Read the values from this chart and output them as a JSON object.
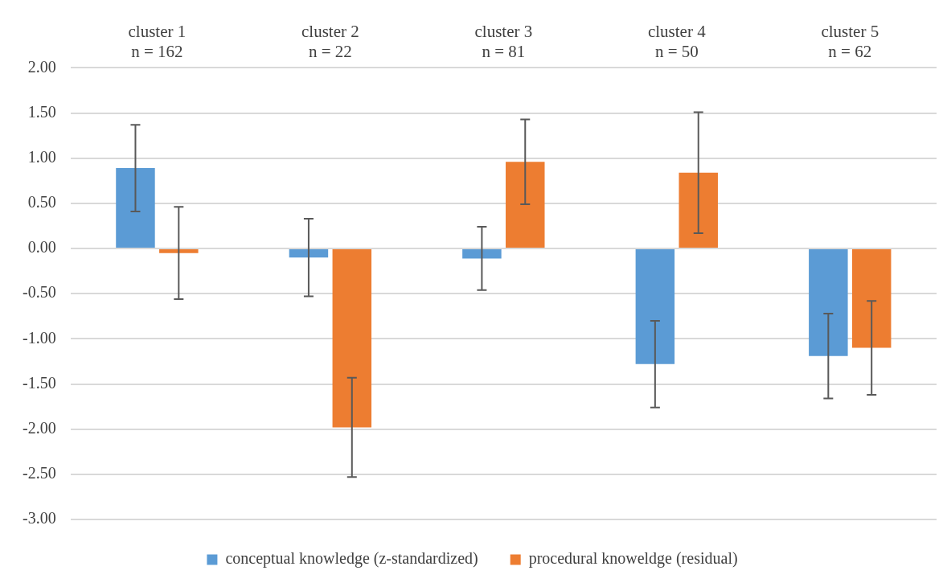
{
  "chart_data": {
    "type": "bar",
    "categories": [
      "cluster 1\nn = 162",
      "cluster 2\nn = 22",
      "cluster 3\nn = 81",
      "cluster 4\nn = 50",
      "cluster 5\nn = 62"
    ],
    "series": [
      {
        "name": "conceptual knowledge (z-standardized)",
        "color": "#5b9bd5",
        "values": [
          0.89,
          -0.1,
          -0.11,
          -1.28,
          -1.19
        ],
        "errors": [
          0.48,
          0.43,
          0.35,
          0.48,
          0.47
        ]
      },
      {
        "name": "procedural knoweldge (residual)",
        "color": "#ed7d31",
        "values": [
          -0.05,
          -1.98,
          0.96,
          0.84,
          -1.1
        ],
        "errors": [
          0.51,
          0.55,
          0.47,
          0.67,
          0.52
        ]
      }
    ],
    "ylim": [
      -3,
      2
    ],
    "yticks": [
      {
        "value": -3,
        "label": "-3.00"
      },
      {
        "value": -2.5,
        "label": "-2.50"
      },
      {
        "value": -2,
        "label": "-2.00"
      },
      {
        "value": -1.5,
        "label": "-1.50"
      },
      {
        "value": -1,
        "label": "-1.00"
      },
      {
        "value": -0.5,
        "label": "-0.50"
      },
      {
        "value": 0,
        "label": "0.00"
      },
      {
        "value": 0.5,
        "label": "0.50"
      },
      {
        "value": 1,
        "label": "1.00"
      },
      {
        "value": 1.5,
        "label": "1.50"
      },
      {
        "value": 2,
        "label": "2.00"
      }
    ],
    "grid": "y",
    "legend": "bottom"
  }
}
